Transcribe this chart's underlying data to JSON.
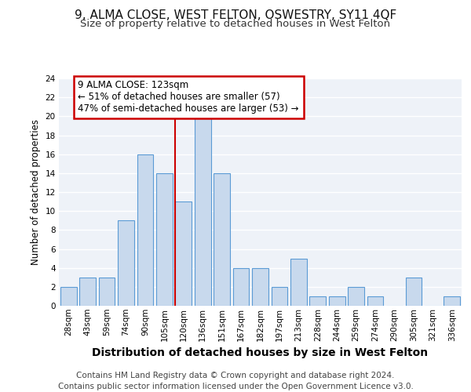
{
  "title": "9, ALMA CLOSE, WEST FELTON, OSWESTRY, SY11 4QF",
  "subtitle": "Size of property relative to detached houses in West Felton",
  "xlabel": "Distribution of detached houses by size in West Felton",
  "ylabel": "Number of detached properties",
  "categories": [
    "28sqm",
    "43sqm",
    "59sqm",
    "74sqm",
    "90sqm",
    "105sqm",
    "120sqm",
    "136sqm",
    "151sqm",
    "167sqm",
    "182sqm",
    "197sqm",
    "213sqm",
    "228sqm",
    "244sqm",
    "259sqm",
    "274sqm",
    "290sqm",
    "305sqm",
    "321sqm",
    "336sqm"
  ],
  "values": [
    2,
    3,
    3,
    9,
    16,
    14,
    11,
    20,
    14,
    4,
    4,
    2,
    5,
    1,
    1,
    2,
    1,
    0,
    3,
    0,
    1
  ],
  "bar_color": "#c8d9ed",
  "bar_edge_color": "#5b9bd5",
  "vline_x_index": 6,
  "vline_color": "#cc0000",
  "annotation_text": "9 ALMA CLOSE: 123sqm\n← 51% of detached houses are smaller (57)\n47% of semi-detached houses are larger (53) →",
  "annotation_box_facecolor": "#ffffff",
  "annotation_box_edgecolor": "#cc0000",
  "ylim": [
    0,
    24
  ],
  "yticks": [
    0,
    2,
    4,
    6,
    8,
    10,
    12,
    14,
    16,
    18,
    20,
    22,
    24
  ],
  "footer_line1": "Contains HM Land Registry data © Crown copyright and database right 2024.",
  "footer_line2": "Contains public sector information licensed under the Open Government Licence v3.0.",
  "background_color": "#eef2f8",
  "grid_color": "#ffffff",
  "title_fontsize": 11,
  "subtitle_fontsize": 9.5,
  "xlabel_fontsize": 10,
  "ylabel_fontsize": 8.5,
  "tick_fontsize": 7.5,
  "annotation_fontsize": 8.5,
  "footer_fontsize": 7.5
}
